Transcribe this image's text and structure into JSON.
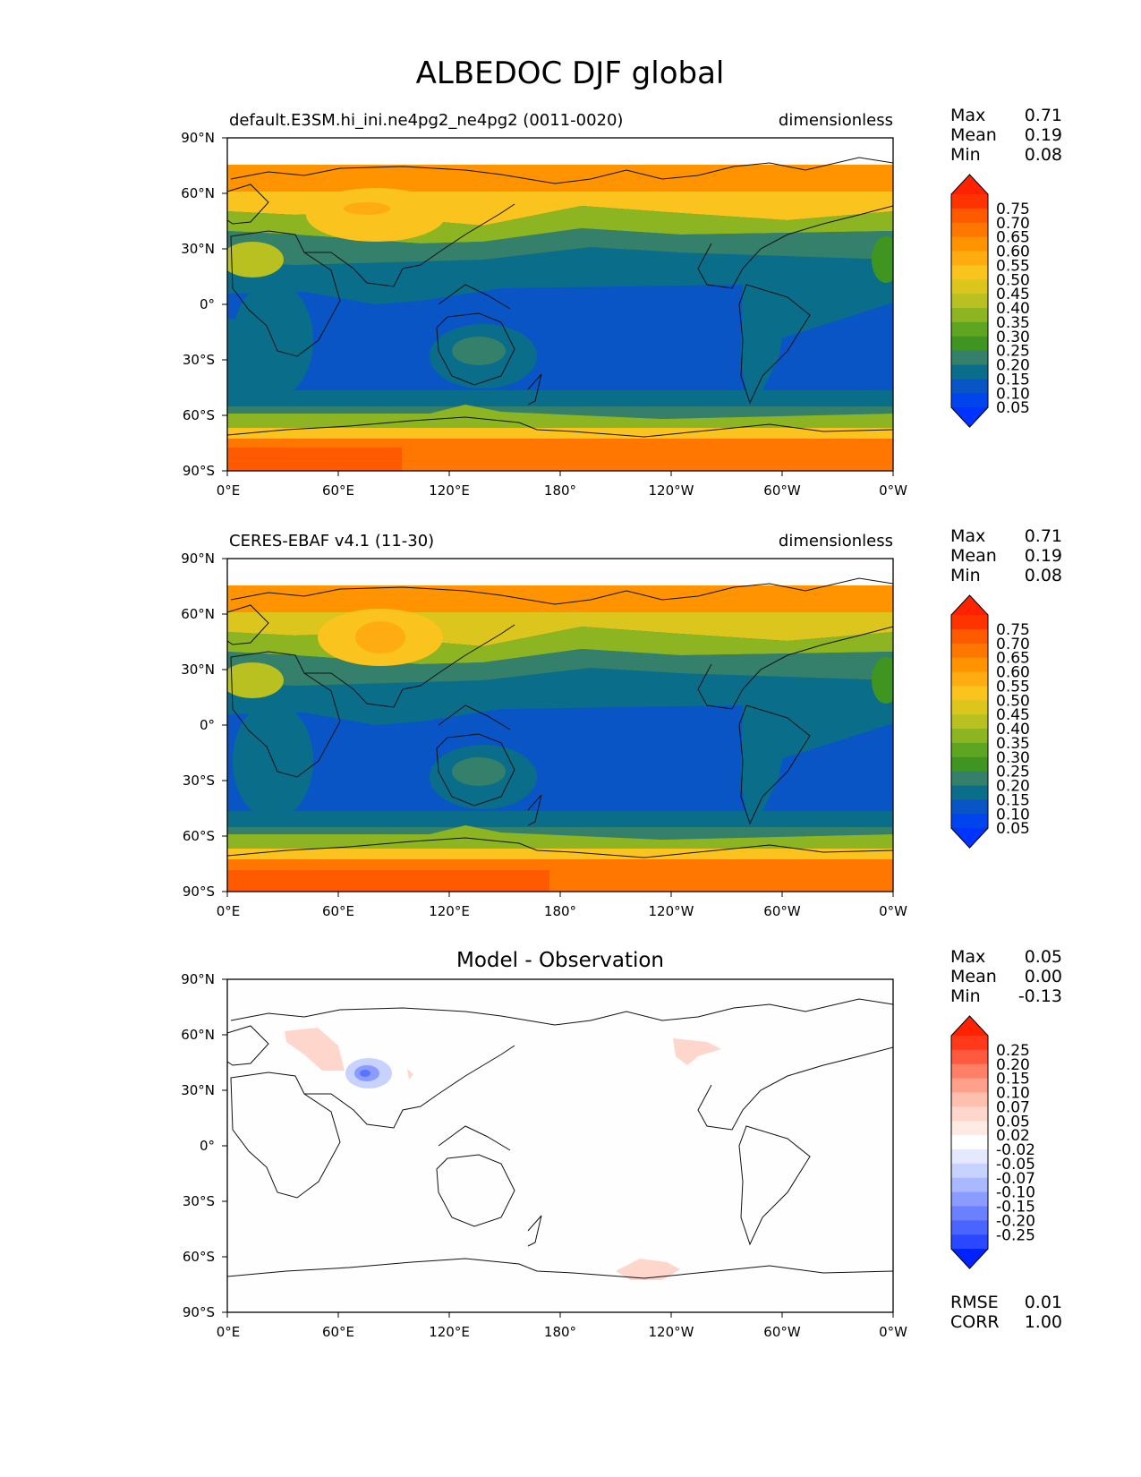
{
  "title": "ALBEDOC DJF global",
  "x_ticks": [
    "0°E",
    "60°E",
    "120°E",
    "180°",
    "120°W",
    "60°W",
    "0°W"
  ],
  "y_ticks": [
    "90°N",
    "60°N",
    "30°N",
    "0°",
    "30°S",
    "60°S",
    "90°S"
  ],
  "stat_labels": {
    "max": "Max",
    "mean": "Mean",
    "min": "Min",
    "rmse": "RMSE",
    "corr": "CORR"
  },
  "panels": [
    {
      "left_title": "default.E3SM.hi_ini.ne4pg2_ne4pg2 (0011-0020)",
      "center_title": "",
      "right_title": "dimensionless",
      "stats": {
        "max": "0.71",
        "mean": "0.19",
        "min": "0.08"
      },
      "colorbar_labels": [
        "0.75",
        "0.70",
        "0.65",
        "0.60",
        "0.55",
        "0.50",
        "0.45",
        "0.40",
        "0.35",
        "0.30",
        "0.25",
        "0.20",
        "0.15",
        "0.10",
        "0.05"
      ],
      "colorbar_colors": [
        "#ff3300",
        "#ff5a00",
        "#ff7700",
        "#ff9300",
        "#ffab12",
        "#fbc31e",
        "#dcc51d",
        "#b8c11f",
        "#8db521",
        "#5ea622",
        "#3f951f",
        "#35806a",
        "#0a6e8a",
        "#0a55c5",
        "#0044ee",
        "#0033ff",
        "#ff2200"
      ]
    },
    {
      "left_title": "CERES-EBAF v4.1 (11-30)",
      "center_title": "",
      "right_title": "dimensionless",
      "stats": {
        "max": "0.71",
        "mean": "0.19",
        "min": "0.08"
      },
      "colorbar_labels": [
        "0.75",
        "0.70",
        "0.65",
        "0.60",
        "0.55",
        "0.50",
        "0.45",
        "0.40",
        "0.35",
        "0.30",
        "0.25",
        "0.20",
        "0.15",
        "0.10",
        "0.05"
      ],
      "colorbar_colors": [
        "#ff3300",
        "#ff5a00",
        "#ff7700",
        "#ff9300",
        "#ffab12",
        "#fbc31e",
        "#dcc51d",
        "#b8c11f",
        "#8db521",
        "#5ea622",
        "#3f951f",
        "#35806a",
        "#0a6e8a",
        "#0a55c5",
        "#0044ee",
        "#0033ff",
        "#ff2200"
      ]
    },
    {
      "left_title": "",
      "center_title": "Model - Observation",
      "right_title": "",
      "stats": {
        "max": "0.05",
        "mean": "0.00",
        "min": "-0.13"
      },
      "extra_stats": {
        "rmse": "0.01",
        "corr": "1.00"
      },
      "colorbar_labels": [
        "0.25",
        "0.20",
        "0.15",
        "0.10",
        "0.07",
        "0.05",
        "0.02",
        "-0.02",
        "-0.05",
        "-0.07",
        "-0.10",
        "-0.15",
        "-0.20",
        "-0.25"
      ],
      "colorbar_colors": [
        "#ff3a1a",
        "#ff5a40",
        "#ff8066",
        "#ffa08a",
        "#ffbfae",
        "#ffd6cc",
        "#ffeae4",
        "#ffffff",
        "#e4e9ff",
        "#c8d2ff",
        "#aab8ff",
        "#8a9cff",
        "#6a80ff",
        "#4a64ff",
        "#2a48ff",
        "#0022ff",
        "#ff2200"
      ]
    }
  ]
}
